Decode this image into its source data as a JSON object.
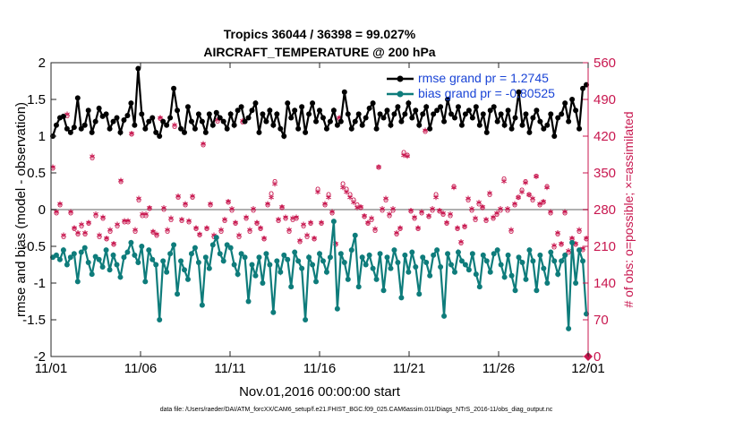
{
  "chart_data": {
    "type": "line",
    "title": "Tropics 36044 / 36398 = 99.027%",
    "subtitle": "AIRCRAFT_TEMPERATURE @ 200 hPa",
    "xlabel": "Nov.01,2016 00:00:00 start",
    "ylabel": "rmse and bias (model - observation)",
    "y2label": "# of obs: o=possible; ×=assimilated",
    "footnote": "data file: /Users/raeder/DAI/ATM_forcXX/CAM6_setup/f.e21.FHIST_BGC.f09_025.CAM6assim.011/Diags_NTrS_2016-11/obs_diag_output.nc",
    "xlim": [
      0,
      30
    ],
    "ylim": [
      -2,
      2
    ],
    "y2lim": [
      0,
      560
    ],
    "xticks": [
      0,
      5,
      10,
      15,
      20,
      25,
      30
    ],
    "xtick_labels": [
      "11/01",
      "11/06",
      "11/11",
      "11/16",
      "11/21",
      "11/26",
      "12/01"
    ],
    "yticks": [
      -2,
      -1.5,
      -1,
      -0.5,
      0,
      0.5,
      1,
      1.5,
      2
    ],
    "ytick_labels": [
      "-2",
      "-1.5",
      "-1",
      "-0.5",
      "0",
      "0.5",
      "1",
      "1.5",
      "2"
    ],
    "y2ticks": [
      0,
      70,
      140,
      210,
      280,
      350,
      420,
      490,
      560
    ],
    "y2tick_labels": [
      "0",
      "70",
      "140",
      "210",
      "280",
      "350",
      "420",
      "490",
      "560"
    ],
    "legend": [
      "rmse grand pr = 1.2745",
      "bias grand pr = -0.80525"
    ],
    "legend_location": "top-right",
    "colors": {
      "rmse": "#000000",
      "bias": "#0e7c7b",
      "obs": "#c8174f",
      "zero": "#b0b0b0",
      "legend_text": "#1a44d6"
    },
    "series": [
      {
        "name": "rmse",
        "axis": "left",
        "values": [
          1.0,
          1.15,
          1.25,
          1.27,
          1.1,
          1.05,
          1.12,
          1.52,
          1.1,
          1.15,
          1.35,
          1.05,
          1.2,
          1.38,
          1.27,
          1.3,
          1.1,
          1.2,
          1.25,
          1.05,
          1.22,
          1.28,
          1.45,
          1.15,
          1.92,
          1.3,
          1.1,
          1.2,
          1.25,
          1.05,
          1.0,
          1.2,
          1.15,
          1.25,
          1.65,
          1.35,
          1.1,
          1.05,
          1.4,
          1.2,
          1.1,
          1.3,
          1.2,
          1.05,
          1.3,
          1.15,
          1.32,
          1.25,
          1.2,
          1.1,
          1.3,
          1.15,
          1.35,
          1.4,
          1.2,
          1.25,
          1.35,
          1.45,
          1.05,
          1.3,
          1.2,
          1.35,
          1.15,
          1.3,
          1.1,
          1.0,
          1.45,
          1.25,
          1.35,
          1.1,
          1.4,
          1.05,
          1.3,
          1.45,
          1.2,
          1.35,
          1.25,
          1.1,
          1.2,
          1.35,
          1.15,
          1.2,
          1.6,
          1.3,
          1.1,
          1.2,
          1.3,
          1.15,
          1.25,
          1.38,
          1.45,
          1.1,
          1.3,
          1.25,
          1.35,
          1.15,
          1.3,
          1.4,
          1.2,
          1.3,
          1.45,
          1.25,
          1.35,
          1.15,
          1.3,
          1.4,
          1.1,
          1.3,
          1.35,
          1.4,
          1.2,
          1.5,
          1.3,
          1.25,
          1.4,
          1.15,
          1.3,
          1.35,
          1.25,
          1.4,
          1.15,
          1.3,
          1.05,
          1.35,
          1.4,
          1.2,
          1.3,
          1.15,
          1.35,
          1.1,
          1.25,
          1.6,
          1.15,
          1.3,
          1.05,
          1.25,
          1.35,
          1.2,
          1.1,
          1.15,
          1.3,
          1.0,
          1.25,
          1.3,
          1.45,
          1.2,
          1.5,
          1.35,
          1.1,
          1.65,
          1.7
        ]
      },
      {
        "name": "bias",
        "axis": "left",
        "values": [
          -0.65,
          -0.62,
          -0.68,
          -0.55,
          -0.75,
          -0.65,
          -0.6,
          -0.98,
          -0.58,
          -0.52,
          -0.72,
          -0.88,
          -0.64,
          -0.68,
          -0.78,
          -0.55,
          -0.82,
          -0.62,
          -0.75,
          -0.92,
          -0.65,
          -0.58,
          -0.45,
          -0.62,
          -0.72,
          -0.5,
          -0.98,
          -0.55,
          -0.68,
          -0.75,
          -1.5,
          -0.7,
          -0.85,
          -0.6,
          -0.48,
          -1.15,
          -0.7,
          -0.82,
          -0.95,
          -0.6,
          -0.52,
          -0.72,
          -1.3,
          -0.65,
          -0.8,
          -0.48,
          -0.38,
          -0.6,
          -0.7,
          -0.48,
          -0.52,
          -0.75,
          -0.88,
          -0.6,
          -0.65,
          -1.25,
          -0.75,
          -0.9,
          -0.65,
          -1.0,
          -0.6,
          -0.75,
          -1.4,
          -0.7,
          -0.85,
          -0.62,
          -0.68,
          -1.05,
          -0.58,
          -0.7,
          -0.8,
          -1.5,
          -0.65,
          -0.75,
          -0.98,
          -0.6,
          -0.7,
          -0.85,
          -0.65,
          -0.16,
          -1.35,
          -0.6,
          -0.72,
          -0.95,
          -0.55,
          -0.35,
          -1.05,
          -0.65,
          -0.75,
          -0.62,
          -0.8,
          -0.95,
          -0.6,
          -1.1,
          -0.65,
          -0.8,
          -0.55,
          -0.72,
          -1.2,
          -0.62,
          -0.85,
          -0.58,
          -0.78,
          -1.15,
          -0.65,
          -0.72,
          -0.9,
          -0.62,
          -0.55,
          -0.78,
          -1.45,
          -0.6,
          -0.75,
          -0.85,
          -0.58,
          -0.7,
          -0.75,
          -0.82,
          -0.6,
          -0.88,
          -1.05,
          -0.62,
          -0.7,
          -0.85,
          -0.6,
          -0.55,
          -0.75,
          -0.92,
          -0.62,
          -0.9,
          -1.1,
          -0.65,
          -0.72,
          -0.95,
          -0.55,
          -0.7,
          -1.1,
          -0.62,
          -0.8,
          -1.0,
          -0.58,
          -0.7,
          -0.88,
          -0.7,
          -0.62,
          -1.62,
          -0.45,
          -1.0,
          -0.55,
          -0.7,
          -1.42
        ]
      },
      {
        "name": "obs possible (o)",
        "axis": "right",
        "values": [
          360,
          275,
          290,
          230,
          460,
          275,
          245,
          235,
          250,
          235,
          255,
          380,
          270,
          230,
          265,
          225,
          240,
          215,
          250,
          335,
          258,
          258,
          425,
          240,
          300,
          270,
          270,
          283,
          238,
          232,
          455,
          282,
          240,
          262,
          440,
          305,
          260,
          290,
          258,
          305,
          245,
          233,
          405,
          245,
          290,
          230,
          450,
          240,
          260,
          295,
          280,
          255,
          230,
          448,
          265,
          240,
          280,
          255,
          245,
          225,
          290,
          312,
          335,
          260,
          285,
          265,
          240,
          262,
          265,
          220,
          250,
          230,
          255,
          225,
          320,
          255,
          290,
          310,
          275,
          215,
          455,
          330,
          320,
          310,
          300,
          290,
          285,
          268,
          255,
          262,
          242,
          362,
          280,
          300,
          270,
          280,
          235,
          245,
          390,
          385,
          278,
          265,
          245,
          275,
          430,
          268,
          280,
          310,
          278,
          272,
          255,
          270,
          325,
          245,
          218,
          248,
          300,
          280,
          262,
          292,
          285,
          260,
          310,
          265,
          272,
          280,
          340,
          280,
          240,
          290,
          305,
          318,
          335,
          310,
          300,
          345,
          290,
          295,
          325,
          275,
          210,
          235,
          215,
          275,
          200,
          225,
          215,
          240,
          205,
          225
        ]
      },
      {
        "name": "obs assimilated (×)",
        "axis": "right",
        "values": [
          358,
          272,
          288,
          228,
          458,
          272,
          242,
          232,
          248,
          232,
          252,
          378,
          268,
          228,
          262,
          222,
          238,
          212,
          248,
          332,
          255,
          255,
          422,
          238,
          298,
          268,
          268,
          280,
          235,
          230,
          452,
          280,
          238,
          260,
          438,
          302,
          258,
          288,
          255,
          302,
          242,
          230,
          402,
          242,
          288,
          228,
          448,
          238,
          258,
          292,
          278,
          252,
          228,
          446,
          262,
          238,
          278,
          252,
          242,
          222,
          288,
          300,
          325,
          258,
          282,
          262,
          238,
          260,
          262,
          218,
          248,
          228,
          252,
          222,
          310,
          252,
          288,
          300,
          272,
          212,
          452,
          318,
          310,
          300,
          290,
          280,
          282,
          265,
          252,
          260,
          240,
          358,
          278,
          298,
          268,
          278,
          232,
          242,
          380,
          378,
          275,
          262,
          242,
          272,
          428,
          265,
          278,
          300,
          275,
          270,
          252,
          268,
          318,
          242,
          215,
          245,
          298,
          278,
          260,
          290,
          282,
          258,
          308,
          262,
          270,
          278,
          330,
          278,
          238,
          288,
          300,
          310,
          328,
          305,
          298,
          340,
          288,
          292,
          318,
          272,
          208,
          232,
          212,
          272,
          198,
          222,
          212,
          238,
          202,
          222
        ]
      }
    ]
  }
}
